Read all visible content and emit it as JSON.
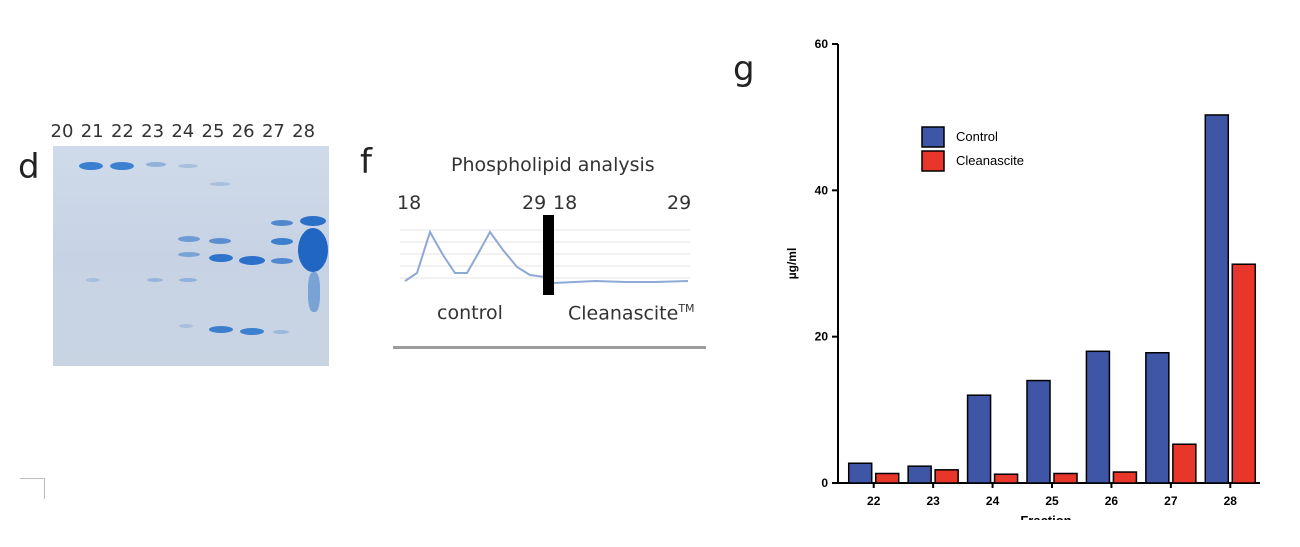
{
  "panel_d": {
    "letter": "d",
    "lanes": [
      "20",
      "21",
      "22",
      "23",
      "24",
      "25",
      "26",
      "27",
      "28"
    ]
  },
  "panel_f": {
    "letter": "f",
    "title": "Phospholipid analysis",
    "left_start": "18",
    "left_end": "29",
    "right_start": "18",
    "right_end": "29",
    "label_control": "control",
    "label_cleanascite": "Cleanascite",
    "trademark": "TM"
  },
  "panel_g": {
    "letter": "g",
    "partial_xlabel": "Fraction"
  },
  "chart_data": {
    "type": "bar",
    "categories": [
      "22",
      "23",
      "24",
      "25",
      "26",
      "27",
      "28"
    ],
    "series": [
      {
        "name": "Control",
        "color": "#3f56a6",
        "values": [
          2.7,
          2.3,
          12.0,
          14.0,
          18.0,
          17.8,
          50.3
        ]
      },
      {
        "name": "Cleanascite",
        "color": "#e8372a",
        "values": [
          1.3,
          1.8,
          1.2,
          1.3,
          1.5,
          5.3,
          29.9
        ]
      }
    ],
    "ylabel": "µg/ml",
    "ylim": [
      0,
      60
    ],
    "yticks": [
      "0",
      "20",
      "40",
      "60"
    ],
    "grid": false,
    "legend_placement": "top-left"
  }
}
